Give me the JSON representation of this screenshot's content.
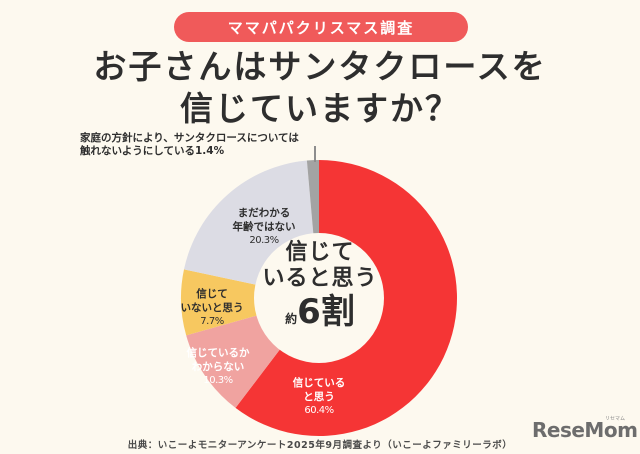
{
  "header": {
    "badge": "ママパパクリスマス調査",
    "title_line1": "お子さんはサンタクロースを",
    "title_line2": "信じていますか？"
  },
  "note": {
    "line1": "家庭の方針により、サンタクロースについては",
    "line2": "触れないようにしている1.4%"
  },
  "center": {
    "line1": "信じて",
    "line2": "いると思う",
    "prefix": "約",
    "number": "6",
    "suffix": "割"
  },
  "labels": {
    "believe": {
      "line1": "信じている",
      "line2": "と思う",
      "pct": "60.4%"
    },
    "unknown": {
      "line1": "信じているか",
      "line2": "わからない",
      "pct": "10.3%"
    },
    "not_believe": {
      "line1": "信じて",
      "line2": "いないと思う",
      "pct": "7.7%"
    },
    "too_young": {
      "line1": "まだわかる",
      "line2": "年齢ではない",
      "pct": "20.3%"
    }
  },
  "footer": {
    "source": "出典：いこーよモニターアンケート2025年9月調査より（いこーよファミリーラボ）",
    "logo": "ReseMom",
    "logo_kana": "リセマム"
  },
  "chart_data": {
    "type": "pie",
    "subtype": "donut",
    "title": "お子さんはサンタクロースを信じていますか？",
    "subtitle": "ママパパクリスマス調査",
    "categories": [
      "信じていると思う",
      "信じているかわからない",
      "信じていないと思う",
      "まだわかる年齢ではない",
      "家庭の方針により、サンタクロースについては触れないようにしている"
    ],
    "values": [
      60.4,
      10.3,
      7.7,
      20.3,
      1.4
    ],
    "colors": [
      "#f53535",
      "#f0a3a0",
      "#f7c860",
      "#dcdce4",
      "#a3a3a3"
    ],
    "center_annotation": "信じていると思う 約6割",
    "start_angle": "12 o'clock, clockwise",
    "source": "出典：いこーよモニターアンケート2025年9月調査より（いこーよファミリーラボ）"
  }
}
